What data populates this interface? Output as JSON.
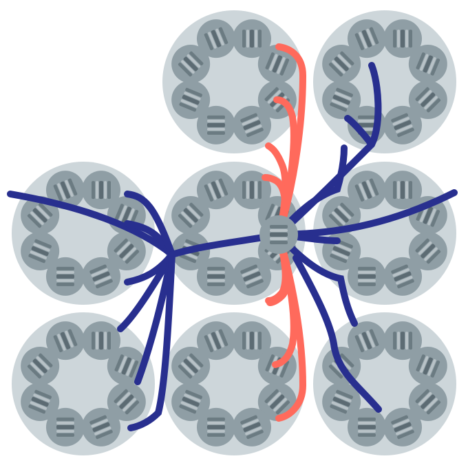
{
  "diagram": {
    "title": "",
    "colors": {
      "background": "#ffffff",
      "hypercolumn_fill": "#cdd6da",
      "unit_fill": "#8f9ea5",
      "unit_stripe_dark": "#4f5e66",
      "unit_stripe_light": "#c9d2d6",
      "excitatory_connection": "#ff6a5c",
      "inhibitory_connection": "#282f8f"
    },
    "hypercolumns": [
      {
        "id": "hc-top-center",
        "units": 8,
        "orientations": [
          0,
          22.5,
          45,
          67.5,
          90,
          112.5,
          135,
          157.5
        ]
      },
      {
        "id": "hc-top-right",
        "units": 8,
        "orientations": [
          0,
          22.5,
          45,
          67.5,
          90,
          112.5,
          135,
          157.5
        ]
      },
      {
        "id": "hc-mid-left",
        "units": 8,
        "orientations": [
          0,
          22.5,
          45,
          67.5,
          90,
          112.5,
          135,
          157.5
        ]
      },
      {
        "id": "hc-mid-center",
        "units": 8,
        "orientations": [
          0,
          22.5,
          45,
          67.5,
          90,
          112.5,
          135,
          157.5
        ]
      },
      {
        "id": "hc-mid-right",
        "units": 8,
        "orientations": [
          0,
          22.5,
          45,
          67.5,
          90,
          112.5,
          135,
          157.5
        ]
      },
      {
        "id": "hc-bottom-left",
        "units": 8,
        "orientations": [
          0,
          22.5,
          45,
          67.5,
          90,
          112.5,
          135,
          157.5
        ]
      },
      {
        "id": "hc-bottom-center",
        "units": 8,
        "orientations": [
          0,
          22.5,
          45,
          67.5,
          90,
          112.5,
          135,
          157.5
        ]
      },
      {
        "id": "hc-bottom-right",
        "units": 8,
        "orientations": [
          0,
          22.5,
          45,
          67.5,
          90,
          112.5,
          135,
          157.5
        ]
      }
    ],
    "connections": {
      "excitatory_count": 8,
      "inhibitory_count": 14
    }
  }
}
